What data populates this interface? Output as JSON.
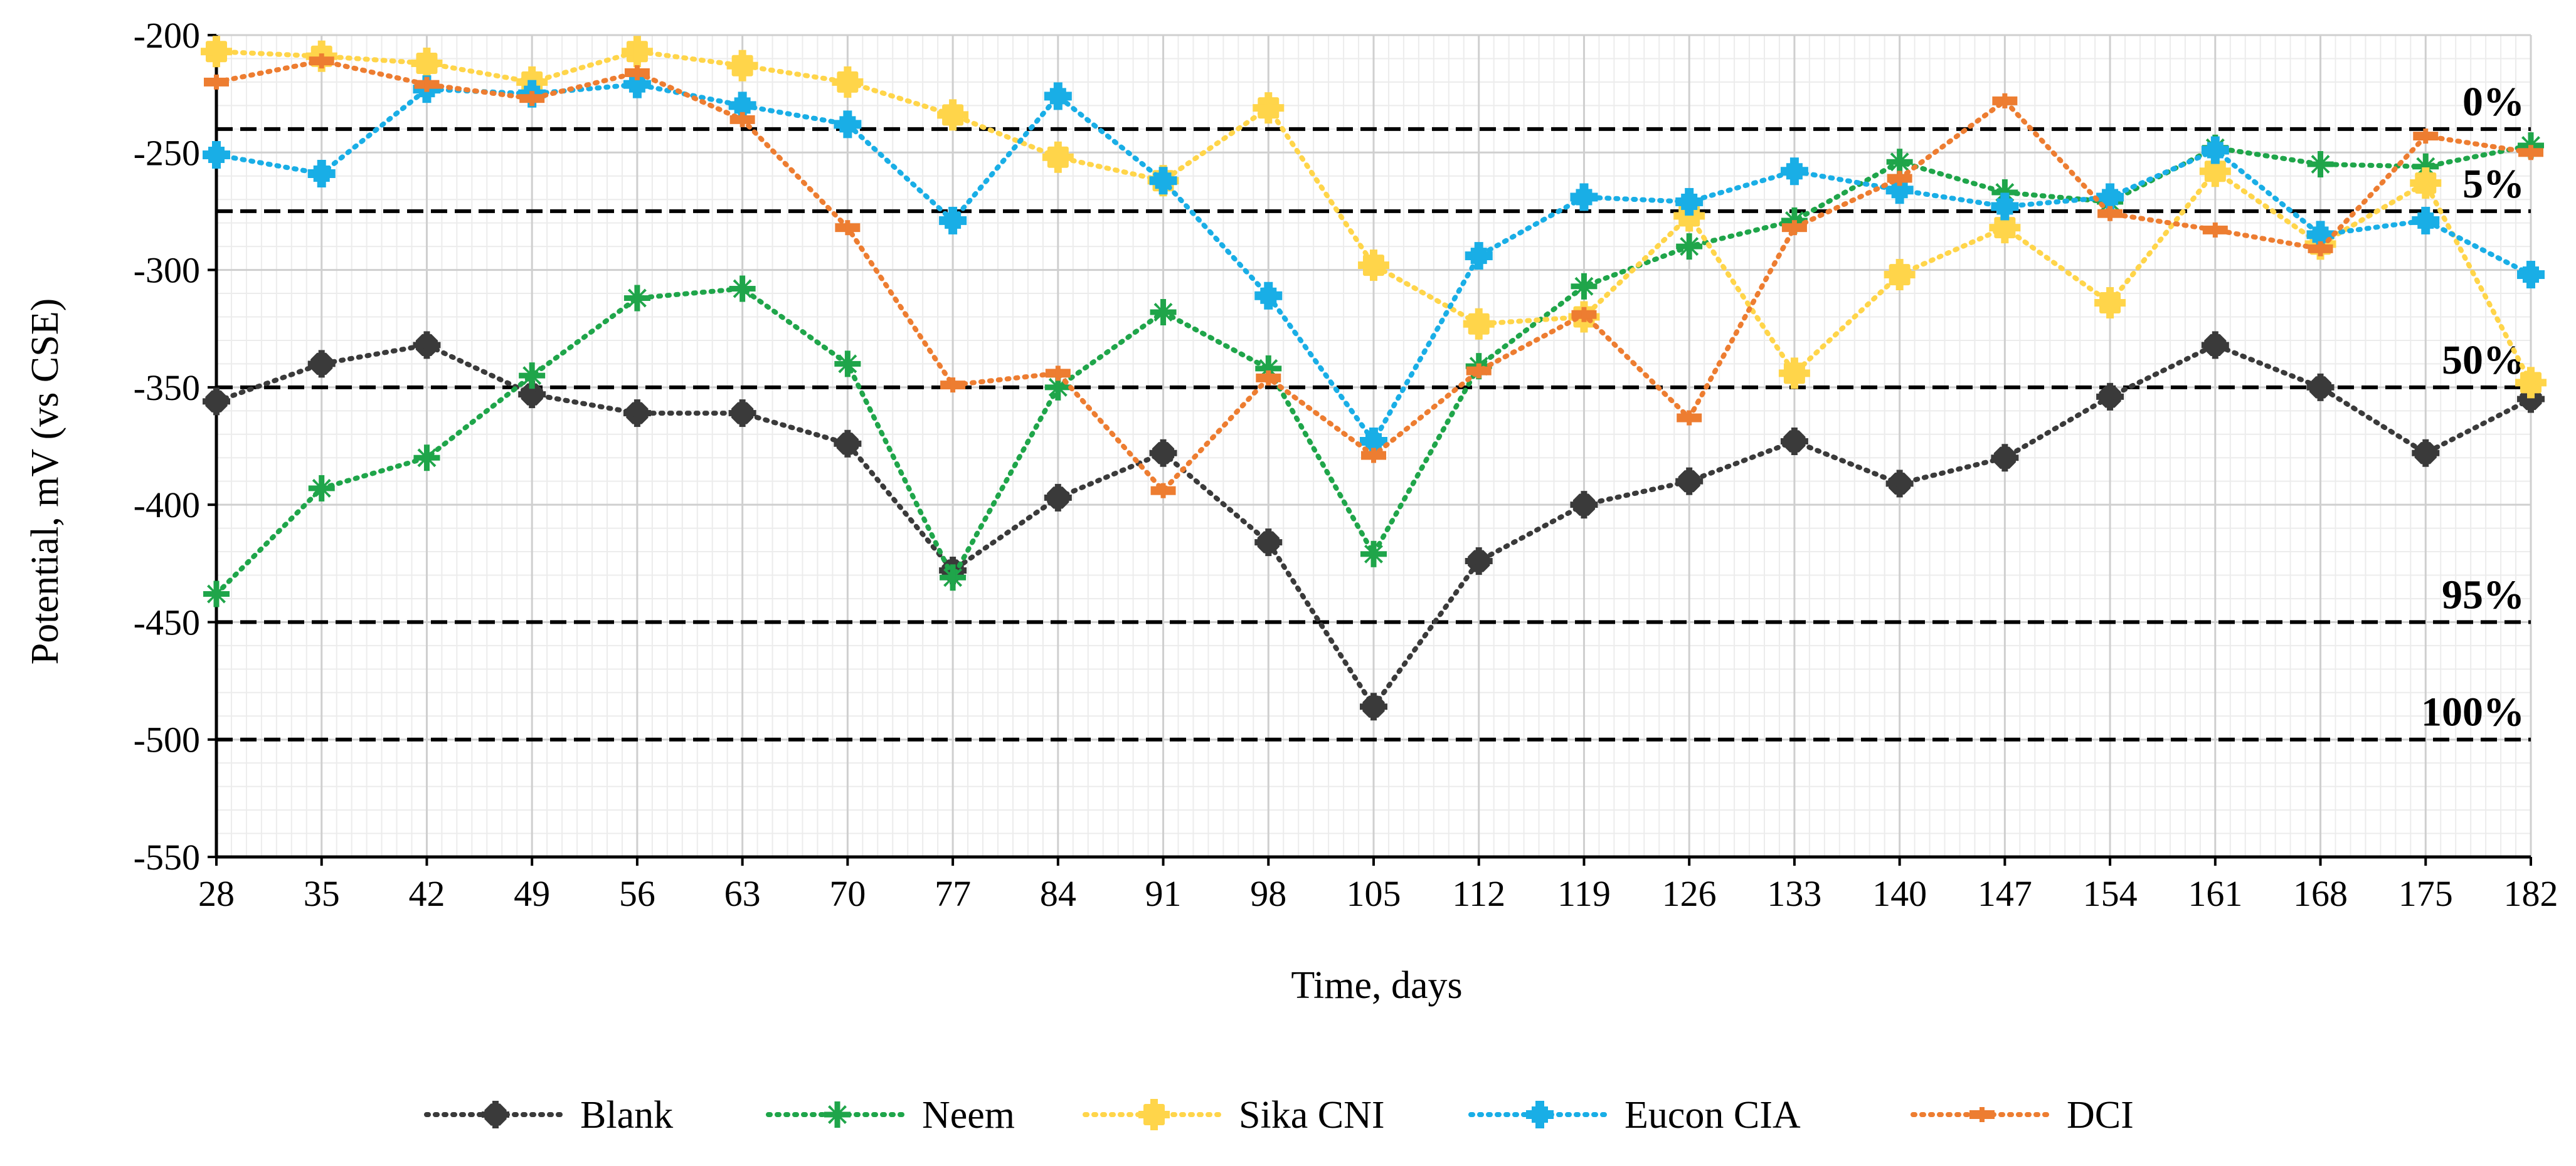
{
  "chart_data": {
    "type": "line",
    "title": "",
    "xlabel": "Time, days",
    "ylabel": "Potential, mV (vs CSE)",
    "x": [
      28,
      35,
      42,
      49,
      56,
      63,
      70,
      77,
      84,
      91,
      98,
      105,
      112,
      119,
      126,
      133,
      140,
      147,
      154,
      161,
      168,
      175,
      182
    ],
    "xticks": [
      "28",
      "35",
      "42",
      "49",
      "56",
      "63",
      "70",
      "77",
      "84",
      "91",
      "98",
      "105",
      "112",
      "119",
      "126",
      "133",
      "140",
      "147",
      "154",
      "161",
      "168",
      "175",
      "182"
    ],
    "ylim": [
      -550,
      -200
    ],
    "yticks": [
      "-200",
      "-250",
      "-300",
      "-350",
      "-400",
      "-450",
      "-500",
      "-550"
    ],
    "grid": true,
    "legend_position": "bottom",
    "series": [
      {
        "name": "Blank",
        "color": "#3a3a3a",
        "marker": "octagon",
        "values": [
          -356,
          -340,
          -332,
          -353,
          -361,
          -361,
          -374,
          -428,
          -397,
          -378,
          -416,
          -486,
          -424,
          -400,
          -390,
          -373,
          -391,
          -380,
          -354,
          -332,
          -350,
          -378,
          -355
        ]
      },
      {
        "name": "Neem",
        "color": "#1fa54a",
        "marker": "star",
        "values": [
          -438,
          -393,
          -380,
          -345,
          -312,
          -308,
          -340,
          -431,
          -350,
          -318,
          -342,
          -421,
          -341,
          -307,
          -290,
          -279,
          -254,
          -267,
          -271,
          -248,
          -255,
          -256,
          -247
        ]
      },
      {
        "name": "Sika CNI",
        "color": "#ffd54a",
        "marker": "square-cross",
        "values": [
          -207,
          -209,
          -212,
          -220,
          -207,
          -213,
          -220,
          -234,
          -252,
          -262,
          -231,
          -298,
          -323,
          -320,
          -277,
          -344,
          -302,
          -282,
          -314,
          -258,
          -289,
          -263,
          -348
        ]
      },
      {
        "name": "Eucon CIA",
        "color": "#19aee6",
        "marker": "cross",
        "values": [
          -251,
          -259,
          -223,
          -225,
          -221,
          -230,
          -238,
          -279,
          -226,
          -262,
          -311,
          -373,
          -294,
          -269,
          -271,
          -258,
          -266,
          -273,
          -269,
          -249,
          -285,
          -279,
          -302
        ]
      },
      {
        "name": "DCI",
        "color": "#ed7d31",
        "marker": "dash",
        "values": [
          -220,
          -211,
          -221,
          -227,
          -216,
          -236,
          -282,
          -349,
          -344,
          -394,
          -346,
          -379,
          -343,
          -319,
          -363,
          -282,
          -261,
          -228,
          -276,
          -283,
          -291,
          -243,
          -250
        ]
      }
    ],
    "reference_lines": [
      {
        "label": "0%",
        "value": -240
      },
      {
        "label": "5%",
        "value": -275
      },
      {
        "label": "50%",
        "value": -350
      },
      {
        "label": "95%",
        "value": -450
      },
      {
        "label": "100%",
        "value": -500
      }
    ]
  }
}
